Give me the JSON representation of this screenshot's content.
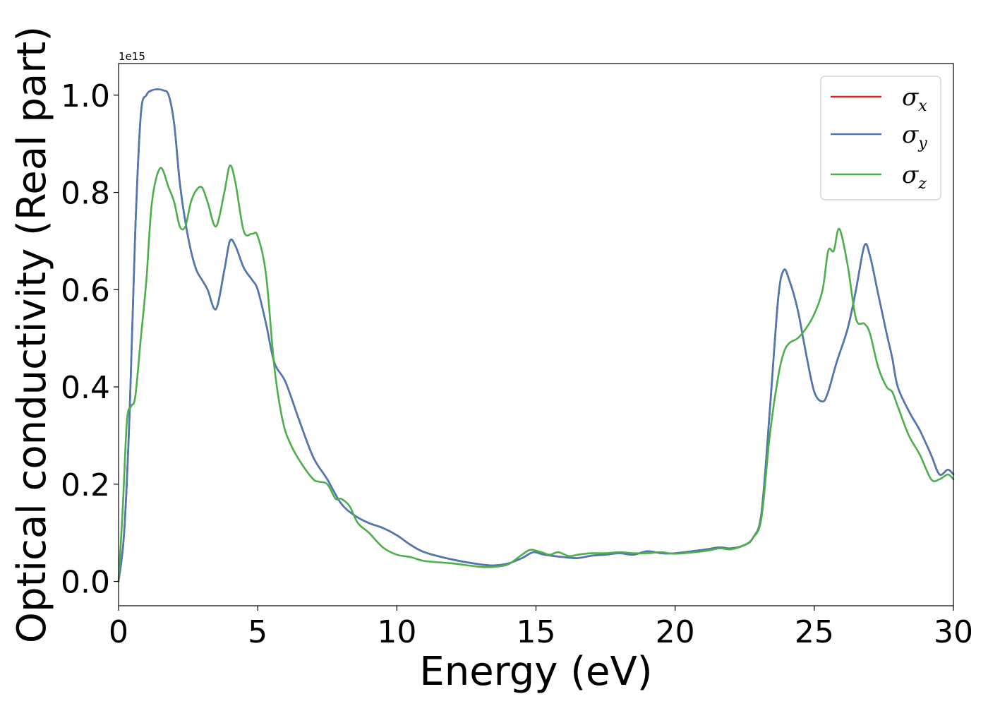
{
  "chart_data": {
    "type": "line",
    "xlabel": "Energy (eV)",
    "ylabel": "Optical conductivity (Real part)",
    "offset_text": "1e15",
    "y_scale": 1000000000000000.0,
    "xlim": [
      0,
      30
    ],
    "ylim": [
      -0.05,
      1.065
    ],
    "xticks": [
      0,
      5,
      10,
      15,
      20,
      25,
      30
    ],
    "xtick_labels": [
      "0",
      "5",
      "10",
      "15",
      "20",
      "25",
      "30"
    ],
    "yticks": [
      0.0,
      0.2,
      0.4,
      0.6,
      0.8,
      1.0
    ],
    "ytick_labels": [
      "0.0",
      "0.2",
      "0.4",
      "0.6",
      "0.8",
      "1.0"
    ],
    "grid": false,
    "legend_position": "top-right",
    "series": [
      {
        "name": "σx",
        "symbol": "σ",
        "subscript": "x",
        "color": "#e41a1c",
        "x": [
          0,
          0.2,
          0.4,
          0.6,
          0.8,
          1.0,
          1.2,
          1.4,
          1.6,
          1.8,
          2.0,
          2.2,
          2.4,
          2.6,
          2.8,
          3.0,
          3.2,
          3.5,
          3.8,
          4.0,
          4.2,
          4.5,
          4.8,
          5.0,
          5.3,
          5.6,
          6.0,
          6.5,
          7.0,
          7.5,
          8.0,
          8.5,
          9.0,
          9.5,
          10.0,
          10.5,
          11.0,
          12.0,
          13.0,
          13.5,
          14.0,
          14.5,
          14.9,
          15.3,
          16.0,
          16.5,
          17.0,
          17.5,
          18.0,
          18.5,
          19.0,
          19.5,
          20.0,
          21.0,
          21.6,
          22.0,
          22.5,
          22.8,
          23.1,
          23.4,
          23.7,
          23.9,
          24.1,
          24.4,
          24.7,
          25.0,
          25.3,
          25.5,
          25.8,
          26.2,
          26.5,
          26.8,
          27.0,
          27.3,
          27.6,
          27.8,
          28.0,
          28.4,
          28.8,
          29.2,
          29.5,
          29.8,
          30.0
        ],
        "y": [
          0.0,
          0.1,
          0.35,
          0.72,
          0.96,
          1.0,
          1.01,
          1.012,
          1.01,
          1.0,
          0.94,
          0.82,
          0.74,
          0.68,
          0.64,
          0.62,
          0.6,
          0.56,
          0.64,
          0.7,
          0.69,
          0.645,
          0.62,
          0.6,
          0.53,
          0.45,
          0.41,
          0.33,
          0.255,
          0.21,
          0.16,
          0.135,
          0.12,
          0.11,
          0.095,
          0.075,
          0.06,
          0.045,
          0.035,
          0.033,
          0.037,
          0.048,
          0.06,
          0.055,
          0.05,
          0.048,
          0.053,
          0.055,
          0.058,
          0.055,
          0.062,
          0.058,
          0.058,
          0.065,
          0.07,
          0.068,
          0.075,
          0.09,
          0.14,
          0.35,
          0.58,
          0.64,
          0.62,
          0.56,
          0.47,
          0.39,
          0.37,
          0.39,
          0.45,
          0.52,
          0.6,
          0.69,
          0.67,
          0.59,
          0.51,
          0.46,
          0.4,
          0.35,
          0.31,
          0.26,
          0.22,
          0.23,
          0.22
        ]
      },
      {
        "name": "σy",
        "symbol": "σ",
        "subscript": "y",
        "color": "#4a7ab5",
        "x": [
          0,
          0.2,
          0.4,
          0.6,
          0.8,
          1.0,
          1.2,
          1.4,
          1.6,
          1.8,
          2.0,
          2.2,
          2.4,
          2.6,
          2.8,
          3.0,
          3.2,
          3.5,
          3.8,
          4.0,
          4.2,
          4.5,
          4.8,
          5.0,
          5.3,
          5.6,
          6.0,
          6.5,
          7.0,
          7.5,
          8.0,
          8.5,
          9.0,
          9.5,
          10.0,
          10.5,
          11.0,
          12.0,
          13.0,
          13.5,
          14.0,
          14.5,
          14.9,
          15.3,
          16.0,
          16.5,
          17.0,
          17.5,
          18.0,
          18.5,
          19.0,
          19.5,
          20.0,
          21.0,
          21.6,
          22.0,
          22.5,
          22.8,
          23.1,
          23.4,
          23.7,
          23.9,
          24.1,
          24.4,
          24.7,
          25.0,
          25.3,
          25.5,
          25.8,
          26.2,
          26.5,
          26.8,
          27.0,
          27.3,
          27.6,
          27.8,
          28.0,
          28.4,
          28.8,
          29.2,
          29.5,
          29.8,
          30.0
        ],
        "y": [
          0.0,
          0.1,
          0.35,
          0.72,
          0.96,
          1.0,
          1.01,
          1.012,
          1.01,
          1.0,
          0.94,
          0.82,
          0.74,
          0.68,
          0.64,
          0.62,
          0.6,
          0.56,
          0.64,
          0.7,
          0.69,
          0.645,
          0.62,
          0.6,
          0.53,
          0.45,
          0.41,
          0.33,
          0.255,
          0.21,
          0.16,
          0.135,
          0.12,
          0.11,
          0.095,
          0.075,
          0.06,
          0.045,
          0.035,
          0.033,
          0.037,
          0.048,
          0.06,
          0.055,
          0.05,
          0.048,
          0.053,
          0.055,
          0.058,
          0.055,
          0.062,
          0.058,
          0.058,
          0.065,
          0.07,
          0.068,
          0.075,
          0.09,
          0.14,
          0.35,
          0.58,
          0.64,
          0.62,
          0.56,
          0.47,
          0.39,
          0.37,
          0.39,
          0.45,
          0.52,
          0.6,
          0.69,
          0.67,
          0.59,
          0.51,
          0.46,
          0.4,
          0.35,
          0.31,
          0.26,
          0.22,
          0.23,
          0.22
        ]
      },
      {
        "name": "σz",
        "symbol": "σ",
        "subscript": "z",
        "color": "#4daf4a",
        "x": [
          0,
          0.15,
          0.3,
          0.45,
          0.6,
          0.8,
          1.0,
          1.2,
          1.5,
          1.8,
          2.0,
          2.2,
          2.4,
          2.6,
          2.8,
          3.0,
          3.2,
          3.5,
          3.8,
          4.0,
          4.2,
          4.5,
          4.8,
          5.0,
          5.3,
          5.6,
          5.9,
          6.2,
          6.6,
          7.0,
          7.2,
          7.5,
          7.8,
          8.0,
          8.3,
          8.6,
          9.0,
          9.5,
          10.0,
          10.5,
          11.0,
          12.0,
          13.0,
          13.5,
          14.0,
          14.5,
          14.8,
          15.2,
          15.5,
          15.8,
          16.2,
          16.5,
          17.0,
          17.5,
          18.0,
          18.5,
          19.0,
          19.5,
          20.0,
          21.0,
          21.6,
          22.0,
          22.5,
          22.8,
          23.1,
          23.4,
          23.7,
          23.9,
          24.1,
          24.4,
          24.7,
          25.0,
          25.3,
          25.5,
          25.7,
          25.9,
          26.2,
          26.5,
          26.8,
          27.0,
          27.3,
          27.6,
          27.8,
          28.0,
          28.4,
          28.8,
          29.2,
          29.5,
          29.8,
          30.0
        ],
        "y": [
          0.0,
          0.15,
          0.33,
          0.36,
          0.38,
          0.5,
          0.62,
          0.78,
          0.85,
          0.81,
          0.78,
          0.73,
          0.73,
          0.78,
          0.805,
          0.81,
          0.78,
          0.73,
          0.8,
          0.855,
          0.82,
          0.72,
          0.715,
          0.71,
          0.63,
          0.44,
          0.33,
          0.28,
          0.24,
          0.21,
          0.205,
          0.2,
          0.17,
          0.17,
          0.155,
          0.12,
          0.1,
          0.07,
          0.055,
          0.05,
          0.042,
          0.037,
          0.03,
          0.03,
          0.035,
          0.055,
          0.065,
          0.06,
          0.055,
          0.06,
          0.052,
          0.055,
          0.058,
          0.058,
          0.06,
          0.058,
          0.058,
          0.06,
          0.057,
          0.062,
          0.068,
          0.066,
          0.075,
          0.09,
          0.13,
          0.3,
          0.42,
          0.47,
          0.49,
          0.5,
          0.52,
          0.55,
          0.6,
          0.68,
          0.68,
          0.725,
          0.65,
          0.54,
          0.53,
          0.51,
          0.44,
          0.4,
          0.39,
          0.36,
          0.3,
          0.26,
          0.21,
          0.21,
          0.22,
          0.21
        ]
      }
    ]
  }
}
